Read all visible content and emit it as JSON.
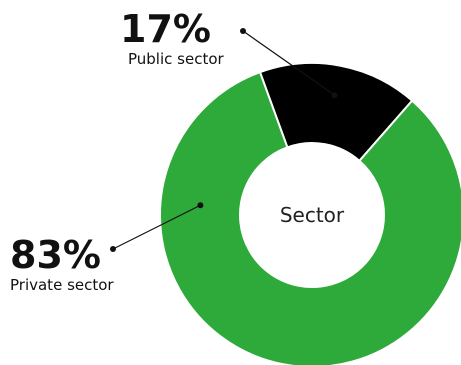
{
  "chart_data": {
    "type": "pie",
    "center_label": "Sector",
    "slices": [
      {
        "label": "Public sector",
        "value": 17,
        "display": "17%",
        "color": "#000000"
      },
      {
        "label": "Private sector",
        "value": 83,
        "display": "83%",
        "color": "#2eaa3a"
      }
    ]
  }
}
